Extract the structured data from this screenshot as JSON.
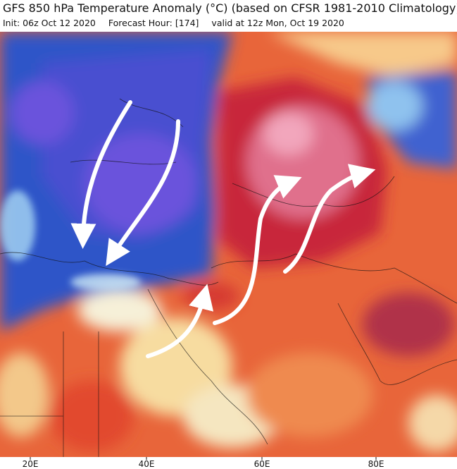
{
  "header": {
    "title": "GFS 850 hPa Temperature Anomaly (°C) (based on CFSR 1981-2010 Climatology)",
    "init": "Init: 06z Oct 12 2020",
    "forecast_hour": "Forecast Hour: [174]",
    "valid": "valid at 12z Mon, Oct 19 2020"
  },
  "map": {
    "longitude_labels": [
      "20E",
      "40E",
      "60E",
      "80E"
    ]
  }
}
